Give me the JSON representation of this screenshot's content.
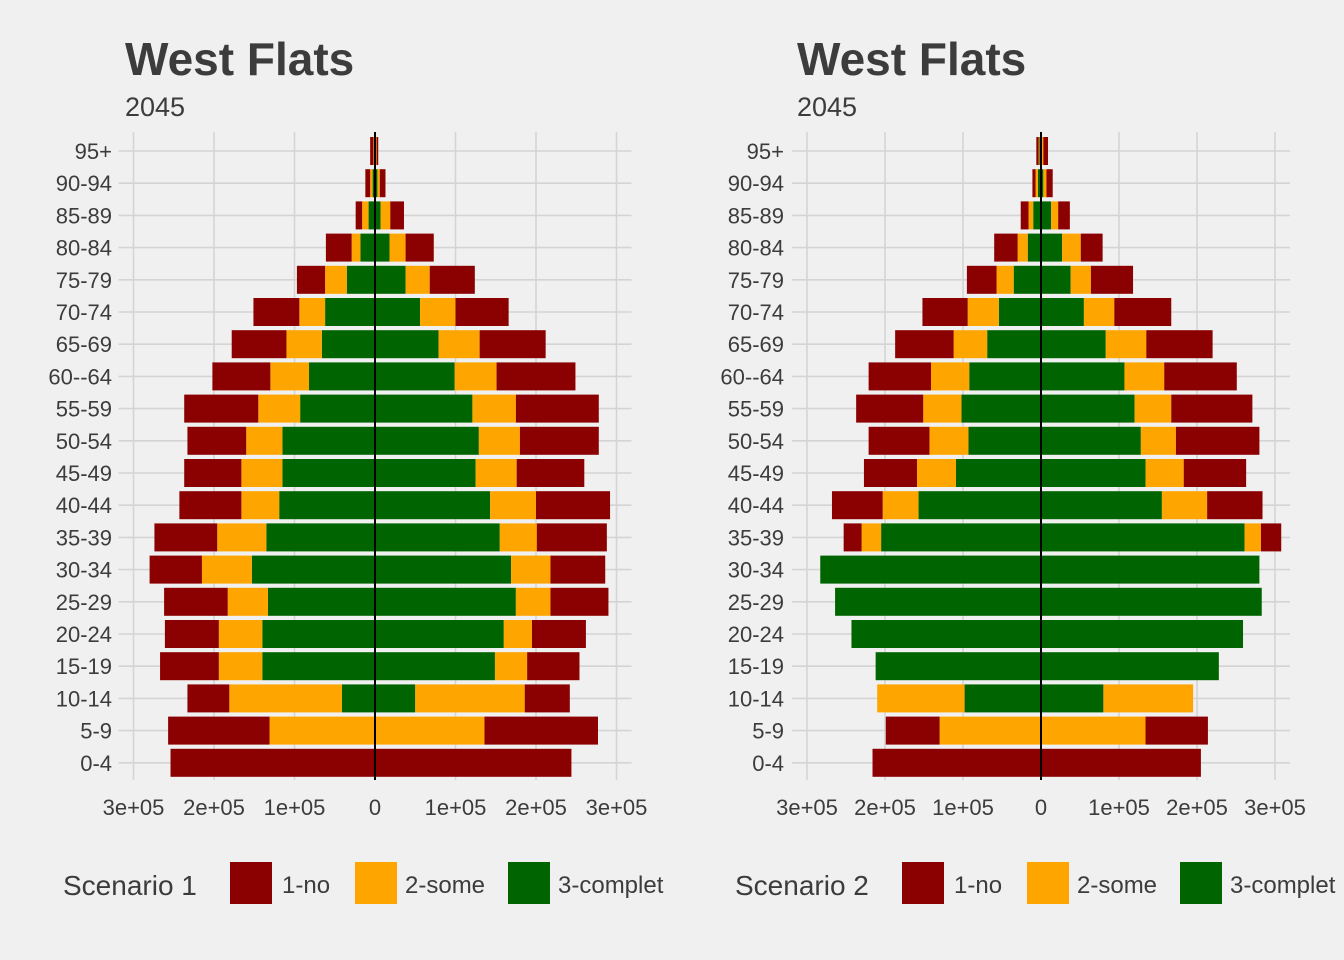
{
  "colors": {
    "1-no": "#8b0000",
    "2-some": "#ffa500",
    "3-complet": "#006400"
  },
  "chart_data": [
    {
      "type": "bar",
      "title": "West Flats",
      "subtitle": "2045",
      "categories": [
        "95+",
        "90-94",
        "85-89",
        "80-84",
        "75-79",
        "70-74",
        "65-69",
        "60--64",
        "55-59",
        "50-54",
        "45-49",
        "40-44",
        "35-39",
        "30-34",
        "25-29",
        "20-24",
        "15-19",
        "10-14",
        "5-9",
        "0-4"
      ],
      "x_ticks": [
        "3e+05",
        "2e+05",
        "1e+05",
        "0",
        "1e+05",
        "2e+05",
        "3e+05"
      ],
      "xlim": [
        -300000,
        300000
      ],
      "legend": {
        "title": "Scenario 1",
        "position": "bottom",
        "entries": [
          "1-no",
          "2-some",
          "3-complet"
        ]
      },
      "left": {
        "3-complet": [
          1000,
          3000,
          8000,
          18000,
          35000,
          62000,
          66000,
          82000,
          93000,
          115000,
          115000,
          119000,
          135000,
          153000,
          133000,
          140000,
          140000,
          41000,
          0,
          0
        ],
        "2-some": [
          1000,
          3000,
          8000,
          11000,
          27000,
          32000,
          44000,
          48000,
          52000,
          45000,
          51000,
          47000,
          61000,
          62000,
          50000,
          54000,
          54000,
          140000,
          131000,
          0
        ],
        "1-no": [
          4000,
          6000,
          8000,
          32000,
          35000,
          57000,
          68000,
          72000,
          92000,
          73000,
          71000,
          77000,
          78000,
          65000,
          79000,
          67000,
          73000,
          52000,
          126000,
          254000
        ]
      },
      "right": {
        "3-complet": [
          1000,
          3000,
          7000,
          18000,
          38000,
          56000,
          79000,
          99000,
          121000,
          129000,
          125000,
          143000,
          155000,
          169000,
          175000,
          160000,
          149000,
          50000,
          0,
          0
        ],
        "2-some": [
          1000,
          3000,
          12000,
          20000,
          30000,
          44000,
          51000,
          52000,
          54000,
          51000,
          51000,
          57000,
          46000,
          49000,
          43000,
          35000,
          40000,
          136000,
          136000,
          0
        ],
        "1-no": [
          2000,
          7000,
          17000,
          35000,
          56000,
          66000,
          82000,
          98000,
          103000,
          98000,
          84000,
          92000,
          87000,
          68000,
          72000,
          67000,
          65000,
          56000,
          141000,
          244000
        ]
      }
    },
    {
      "type": "bar",
      "title": "West Flats",
      "subtitle": "2045",
      "categories": [
        "95+",
        "90-94",
        "85-89",
        "80-84",
        "75-79",
        "70-74",
        "65-69",
        "60--64",
        "55-59",
        "50-54",
        "45-49",
        "40-44",
        "35-39",
        "30-34",
        "25-29",
        "20-24",
        "15-19",
        "10-14",
        "5-9",
        "0-4"
      ],
      "x_ticks": [
        "3e+05",
        "2e+05",
        "1e+05",
        "0",
        "1e+05",
        "2e+05",
        "3e+05"
      ],
      "xlim": [
        -300000,
        300000
      ],
      "legend": {
        "title": "Scenario 2",
        "position": "bottom",
        "entries": [
          "1-no",
          "2-some",
          "3-complet"
        ]
      },
      "left": {
        "3-complet": [
          2000,
          4000,
          10000,
          17000,
          35000,
          54000,
          69000,
          92000,
          102000,
          93000,
          109000,
          157000,
          205000,
          283000,
          264000,
          243000,
          212000,
          98000,
          0,
          0
        ],
        "2-some": [
          1000,
          3000,
          6000,
          13000,
          22000,
          40000,
          43000,
          49000,
          49000,
          50000,
          50000,
          46000,
          25000,
          0,
          0,
          0,
          0,
          112000,
          130000,
          0
        ],
        "1-no": [
          3000,
          4000,
          10000,
          30000,
          38000,
          58000,
          75000,
          80000,
          86000,
          78000,
          68000,
          65000,
          23000,
          0,
          0,
          0,
          0,
          0,
          69000,
          216000
        ]
      },
      "right": {
        "3-complet": [
          1000,
          3000,
          13000,
          27000,
          38000,
          55000,
          83000,
          107000,
          120000,
          128000,
          134000,
          155000,
          261000,
          280000,
          283000,
          259000,
          228000,
          80000,
          0,
          0
        ],
        "2-some": [
          2000,
          4000,
          9000,
          24000,
          26000,
          39000,
          52000,
          51000,
          47000,
          45000,
          49000,
          58000,
          21000,
          0,
          0,
          0,
          0,
          115000,
          134000,
          0
        ],
        "1-no": [
          6000,
          8000,
          15000,
          28000,
          54000,
          73000,
          85000,
          93000,
          104000,
          107000,
          80000,
          71000,
          26000,
          0,
          0,
          0,
          0,
          0,
          80000,
          205000
        ]
      }
    }
  ]
}
